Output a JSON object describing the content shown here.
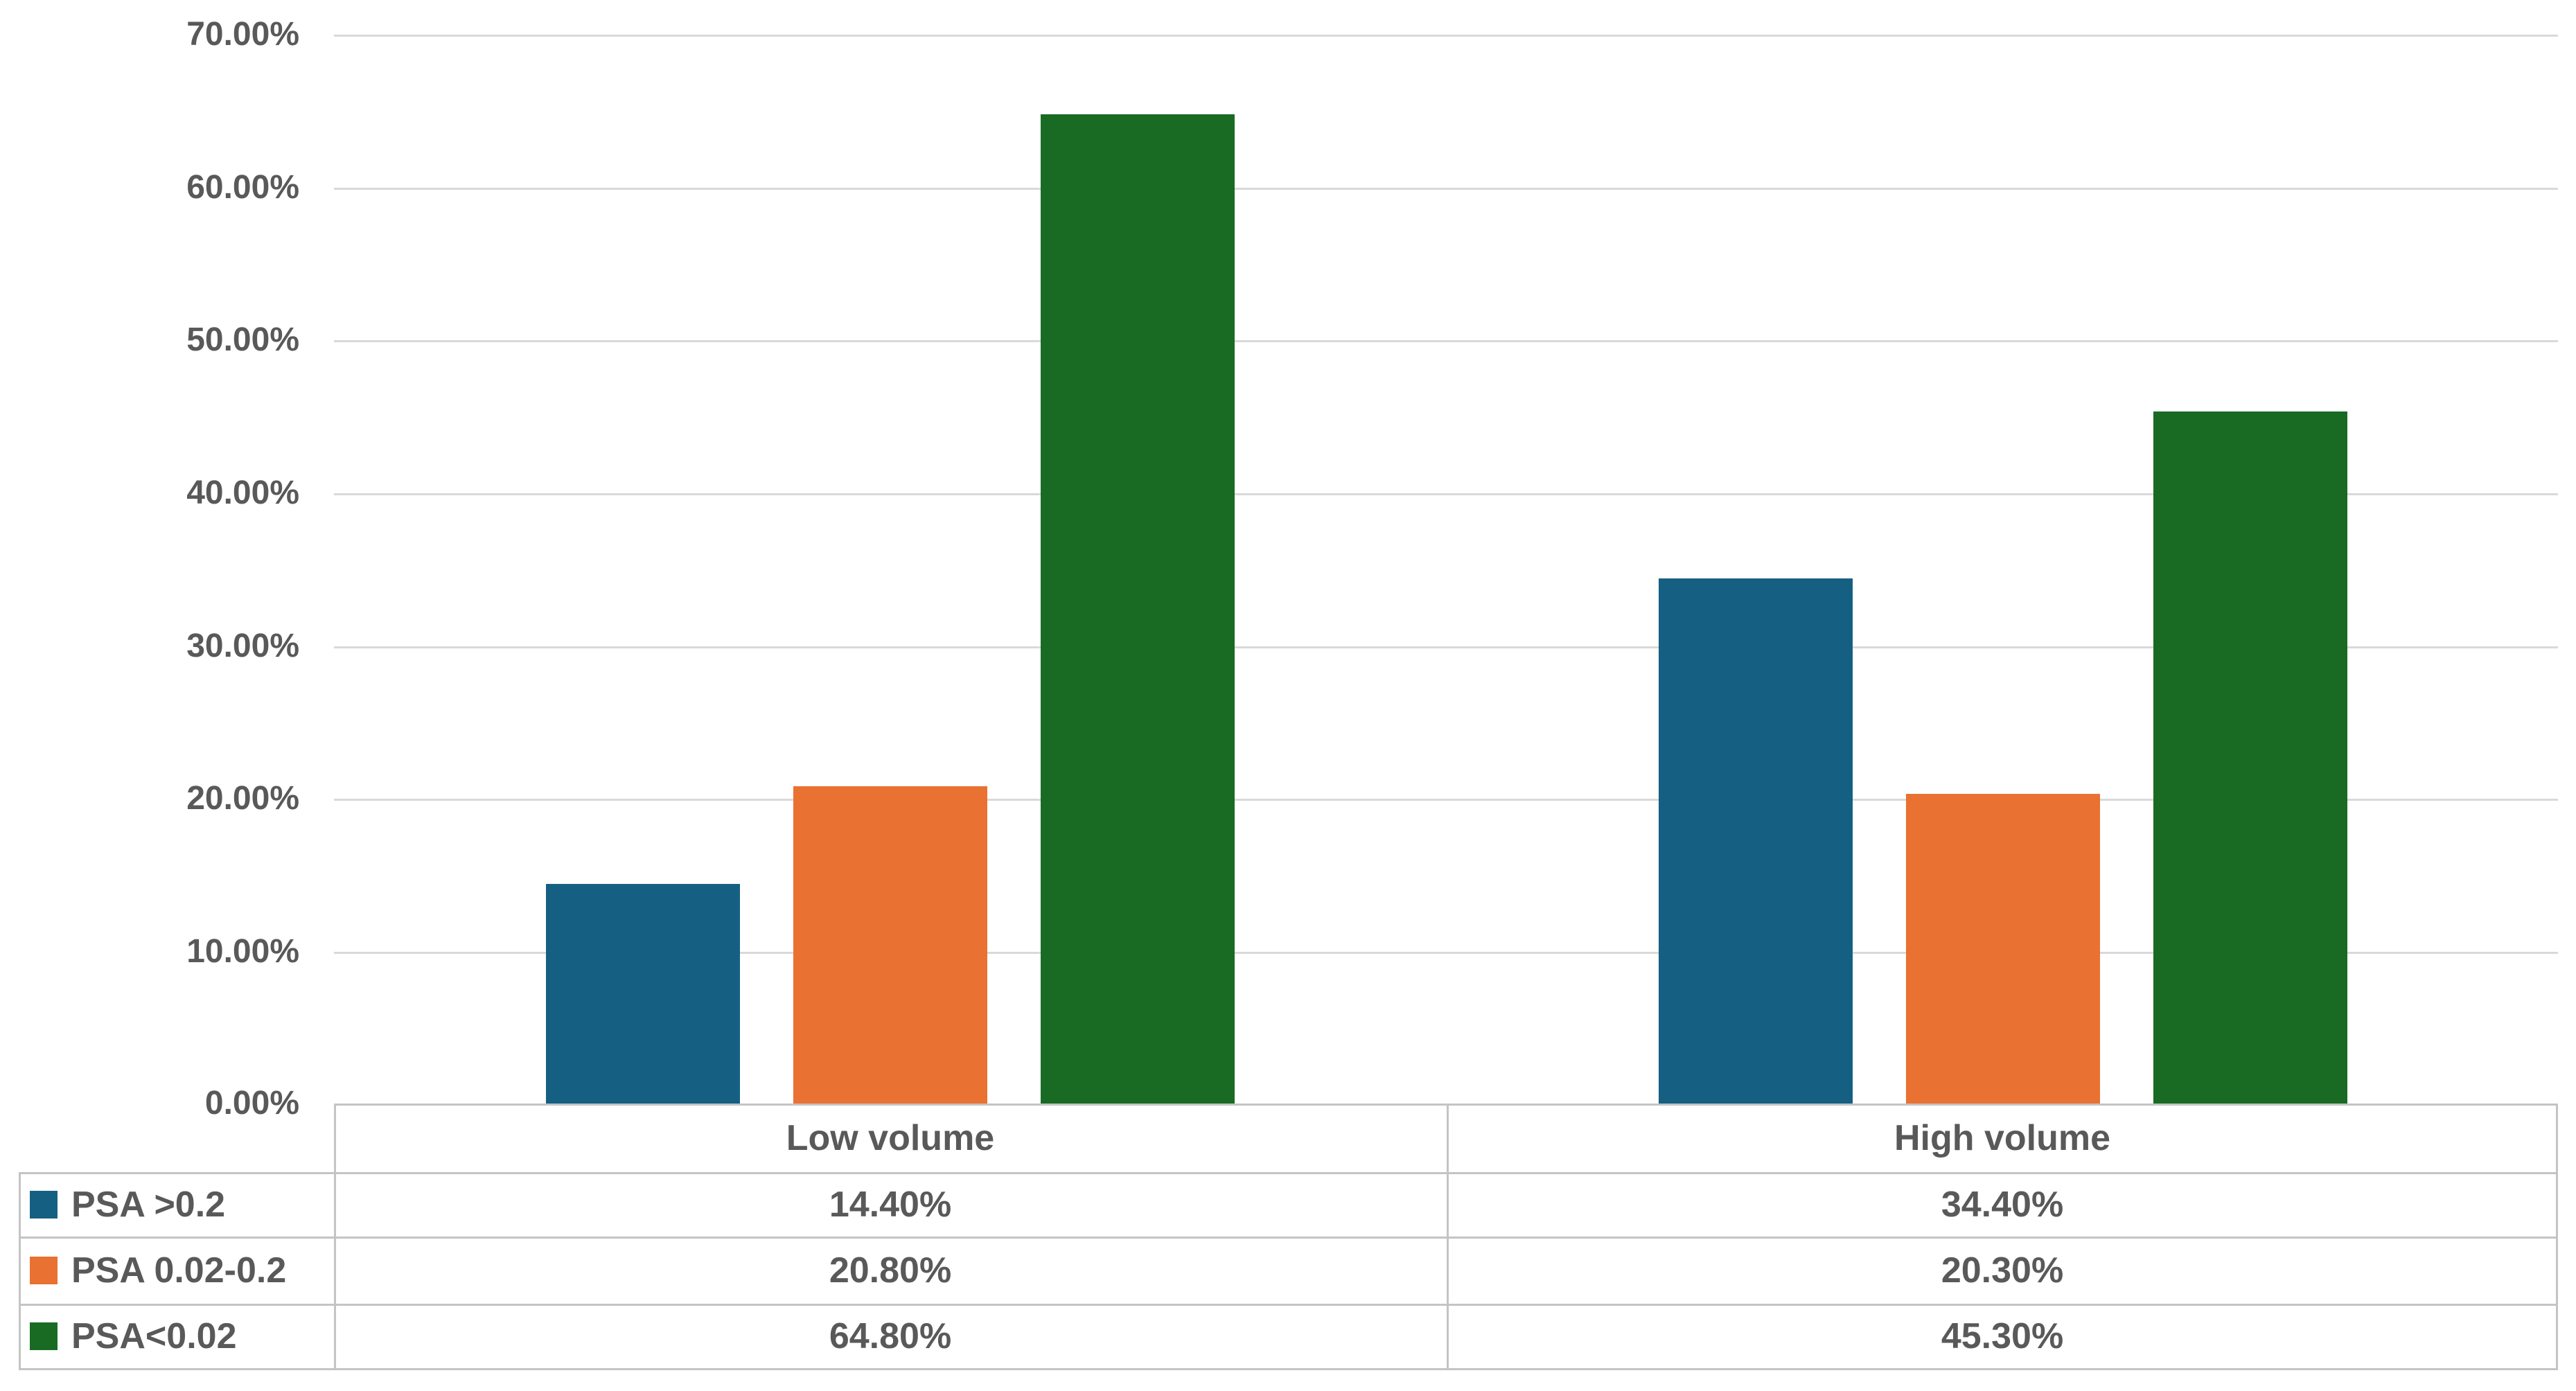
{
  "chart_data": {
    "type": "bar",
    "title": "",
    "categories": [
      "Low volume",
      "High volume"
    ],
    "series": [
      {
        "name": "PSA >0.2",
        "color": "#156082",
        "values": [
          14.4,
          34.4
        ],
        "value_labels": [
          "14.40%",
          "34.40%"
        ]
      },
      {
        "name": "PSA 0.02-0.2",
        "color": "#E97132",
        "values": [
          20.8,
          20.3
        ],
        "value_labels": [
          "20.80%",
          "20.30%"
        ]
      },
      {
        "name": "PSA<0.02",
        "color": "#196B24",
        "values": [
          64.8,
          45.3
        ],
        "value_labels": [
          "64.80%",
          "45.30%"
        ]
      }
    ],
    "y_axis": {
      "min": 0,
      "max": 70,
      "step": 10,
      "tick_labels_top_to_bottom": [
        "70.00%",
        "60.00%",
        "50.00%",
        "40.00%",
        "30.00%",
        "20.00%",
        "10.00%",
        "0.00%"
      ]
    },
    "grid": true,
    "legend_position": "data-table-left-column",
    "colors": {
      "grid": "#D9D9D9",
      "border": "#C4C4C4",
      "text": "#595959",
      "background": "#FFFFFF"
    }
  }
}
